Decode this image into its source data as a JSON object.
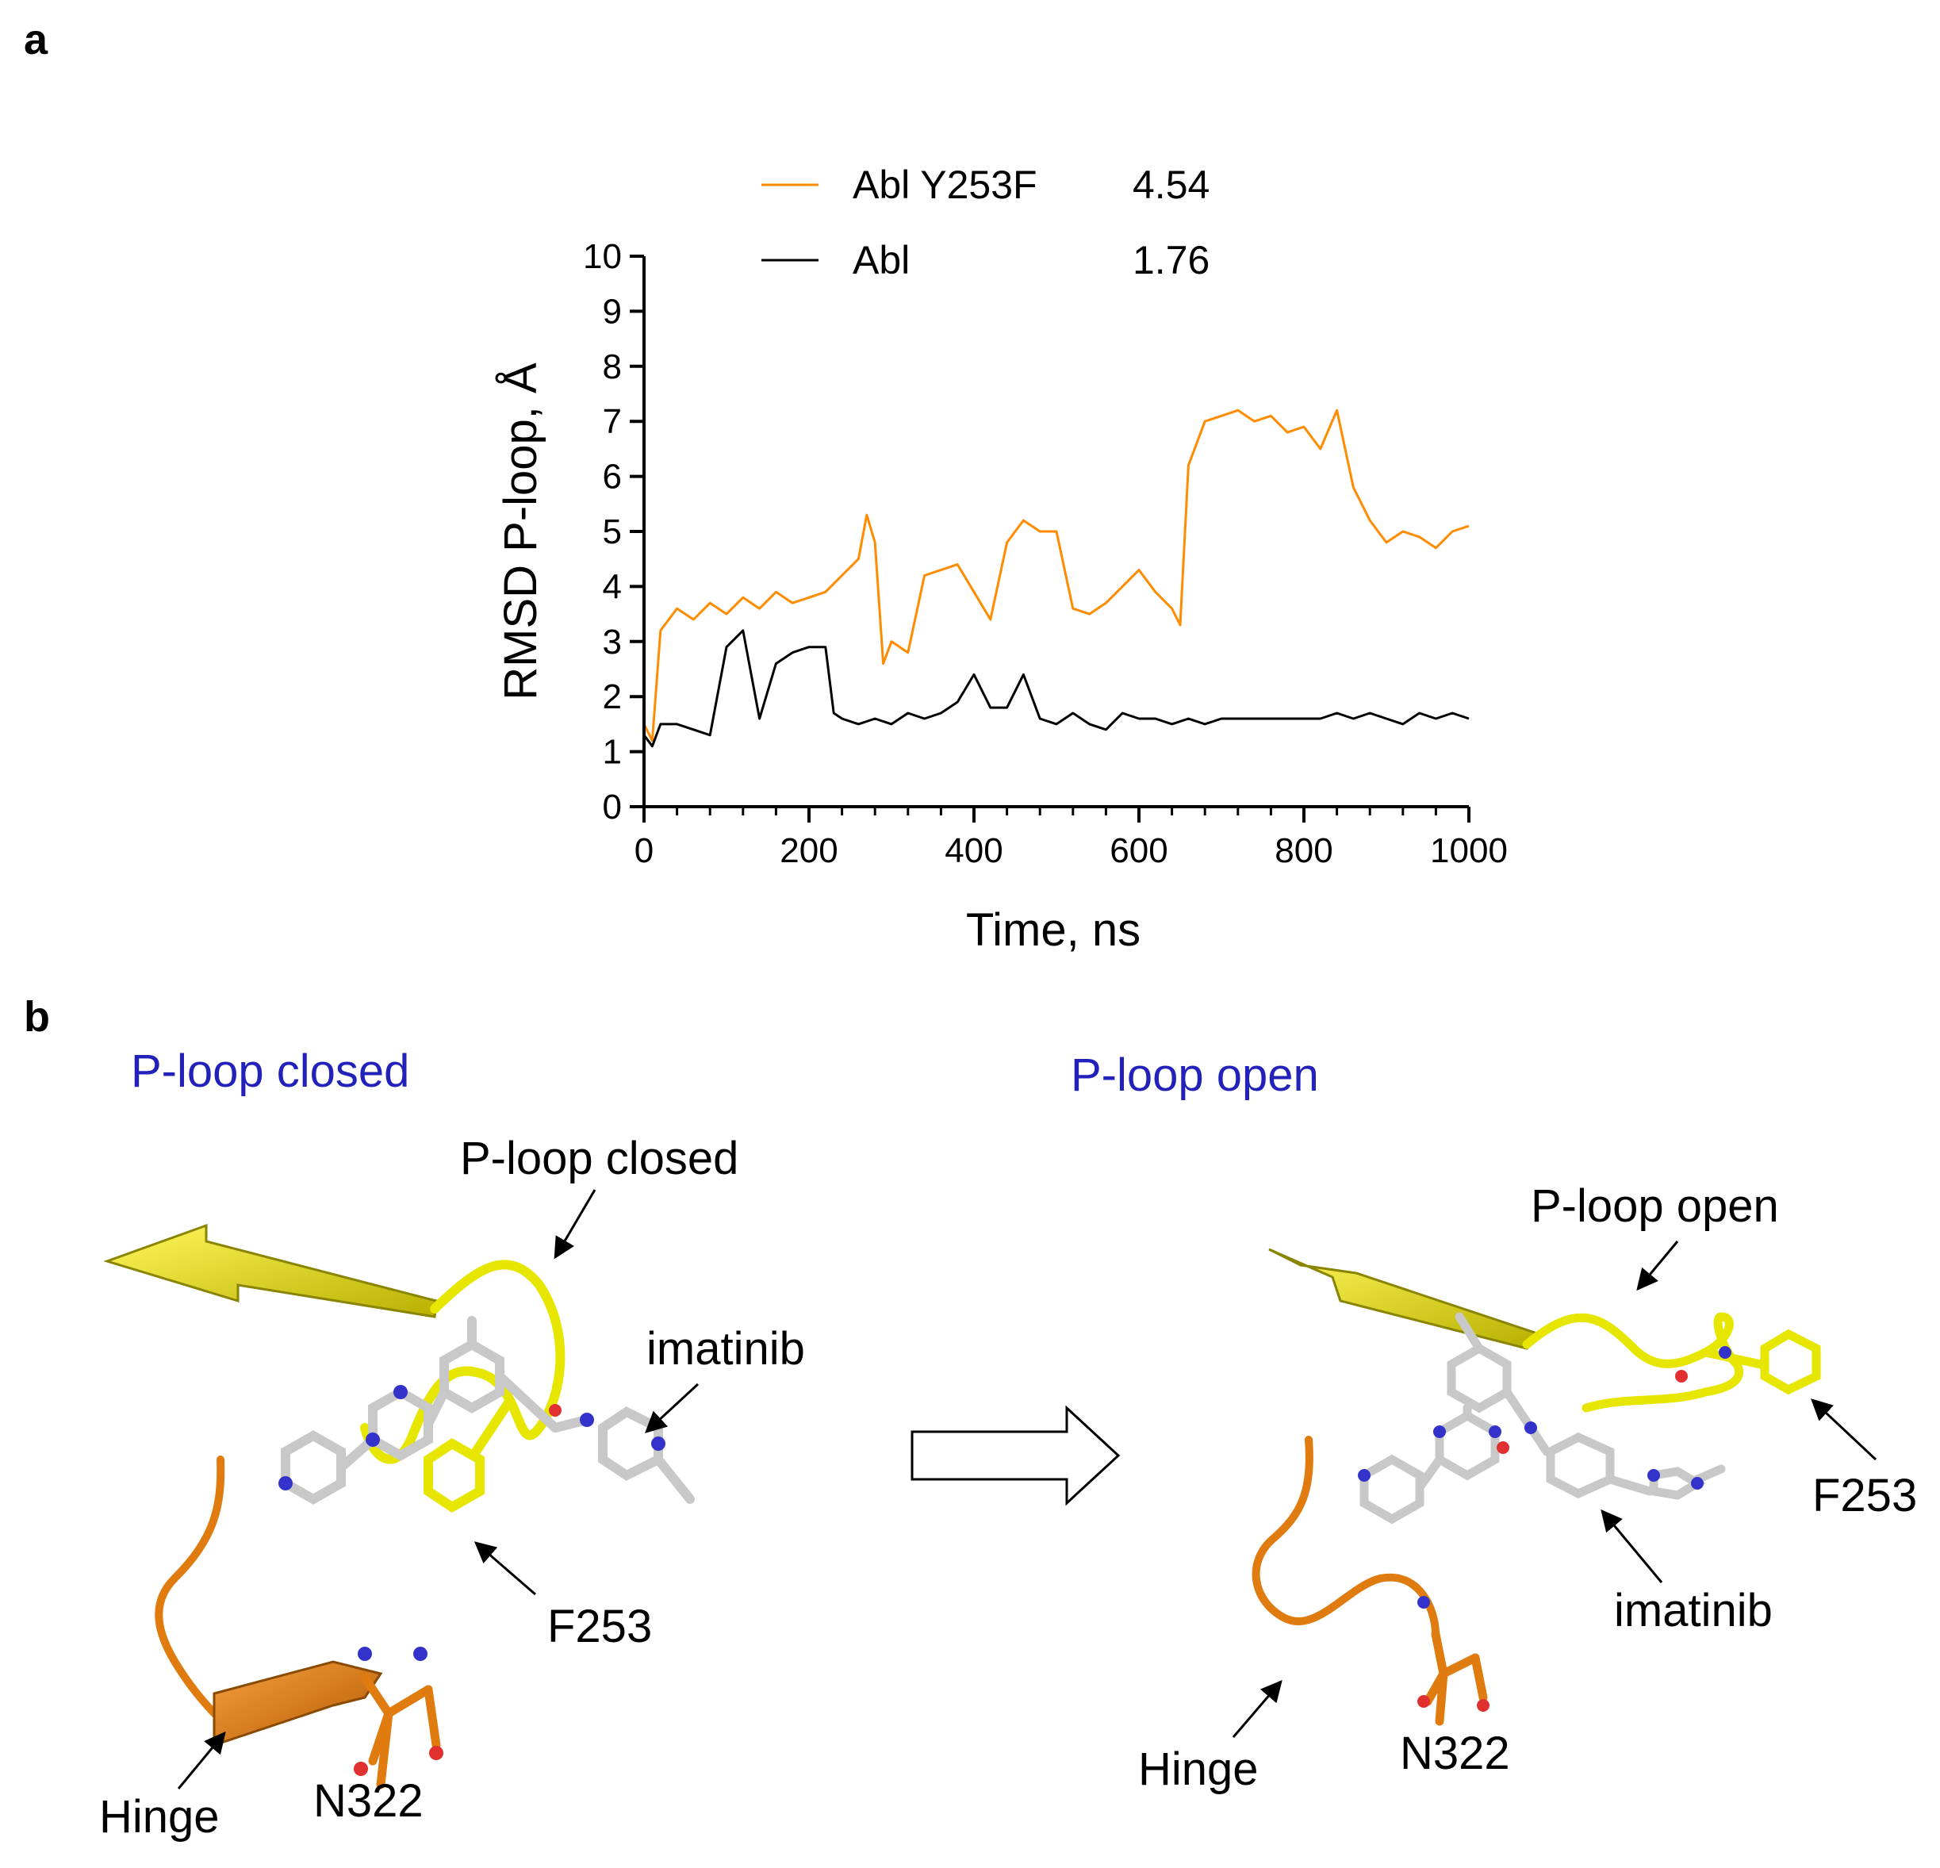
{
  "panels": {
    "a": "a",
    "b": "b"
  },
  "chart_data": {
    "type": "line",
    "title": "",
    "xlabel": "Time, ns",
    "ylabel": "RMSD P-loop, Å",
    "xlim": [
      0,
      1000
    ],
    "ylim": [
      0,
      10
    ],
    "x_ticks": [
      "0",
      "200",
      "400",
      "600",
      "800",
      "1000"
    ],
    "y_ticks": [
      "0",
      "1",
      "2",
      "3",
      "4",
      "5",
      "6",
      "7",
      "8",
      "9",
      "10"
    ],
    "grid": false,
    "legend_position": "top",
    "series": [
      {
        "name": "Abl Y253F",
        "mean_label": "4.54",
        "color": "#ff8c00",
        "x": [
          0,
          10,
          20,
          40,
          60,
          80,
          100,
          120,
          140,
          160,
          180,
          200,
          220,
          240,
          260,
          270,
          280,
          290,
          300,
          320,
          340,
          360,
          380,
          400,
          420,
          440,
          460,
          480,
          500,
          520,
          540,
          560,
          580,
          600,
          620,
          640,
          650,
          660,
          680,
          700,
          720,
          740,
          760,
          780,
          800,
          820,
          840,
          860,
          880,
          900,
          920,
          940,
          960,
          980,
          1000
        ],
        "y": [
          1.5,
          1.2,
          3.2,
          3.6,
          3.4,
          3.7,
          3.5,
          3.8,
          3.6,
          3.9,
          3.7,
          3.8,
          3.9,
          4.2,
          4.5,
          5.3,
          4.8,
          2.6,
          3.0,
          2.8,
          4.2,
          4.3,
          4.4,
          3.9,
          3.4,
          4.8,
          5.2,
          5.0,
          5.0,
          3.6,
          3.5,
          3.7,
          4.0,
          4.3,
          3.9,
          3.6,
          3.3,
          6.2,
          7.0,
          7.1,
          7.2,
          7.0,
          7.1,
          6.8,
          6.9,
          6.5,
          7.2,
          5.8,
          5.2,
          4.8,
          5.0,
          4.9,
          4.7,
          5.0,
          5.1
        ]
      },
      {
        "name": "Abl",
        "mean_label": "1.76",
        "color": "#000000",
        "x": [
          0,
          10,
          20,
          40,
          60,
          80,
          100,
          120,
          140,
          160,
          180,
          200,
          220,
          230,
          240,
          260,
          280,
          300,
          320,
          340,
          360,
          380,
          400,
          420,
          440,
          460,
          480,
          500,
          520,
          540,
          560,
          580,
          600,
          620,
          640,
          660,
          680,
          700,
          720,
          740,
          760,
          780,
          800,
          820,
          840,
          860,
          880,
          900,
          920,
          940,
          960,
          980,
          1000
        ],
        "y": [
          1.3,
          1.1,
          1.5,
          1.5,
          1.4,
          1.3,
          2.9,
          3.2,
          1.6,
          2.6,
          2.8,
          2.9,
          2.9,
          1.7,
          1.6,
          1.5,
          1.6,
          1.5,
          1.7,
          1.6,
          1.7,
          1.9,
          2.4,
          1.8,
          1.8,
          2.4,
          1.6,
          1.5,
          1.7,
          1.5,
          1.4,
          1.7,
          1.6,
          1.6,
          1.5,
          1.6,
          1.5,
          1.6,
          1.6,
          1.6,
          1.6,
          1.6,
          1.6,
          1.6,
          1.7,
          1.6,
          1.7,
          1.6,
          1.5,
          1.7,
          1.6,
          1.7,
          1.6
        ]
      }
    ]
  },
  "panel_b": {
    "left_title": "P-loop closed",
    "right_title": "P-loop open",
    "left_labels": {
      "ploop": "P-loop closed",
      "imatinib": "imatinib",
      "f253": "F253",
      "n322": "N322",
      "hinge": "Hinge"
    },
    "right_labels": {
      "ploop": "P-loop open",
      "imatinib": "imatinib",
      "f253": "F253",
      "n322": "N322",
      "hinge": "Hinge"
    },
    "colors": {
      "ploop_cartoon": "#e6e600",
      "hinge_cartoon": "#e07b10",
      "ligand": "#c8c8c8",
      "nitrogen": "#3333cc",
      "oxygen": "#e03030",
      "title_blue": "#2222bb"
    }
  }
}
